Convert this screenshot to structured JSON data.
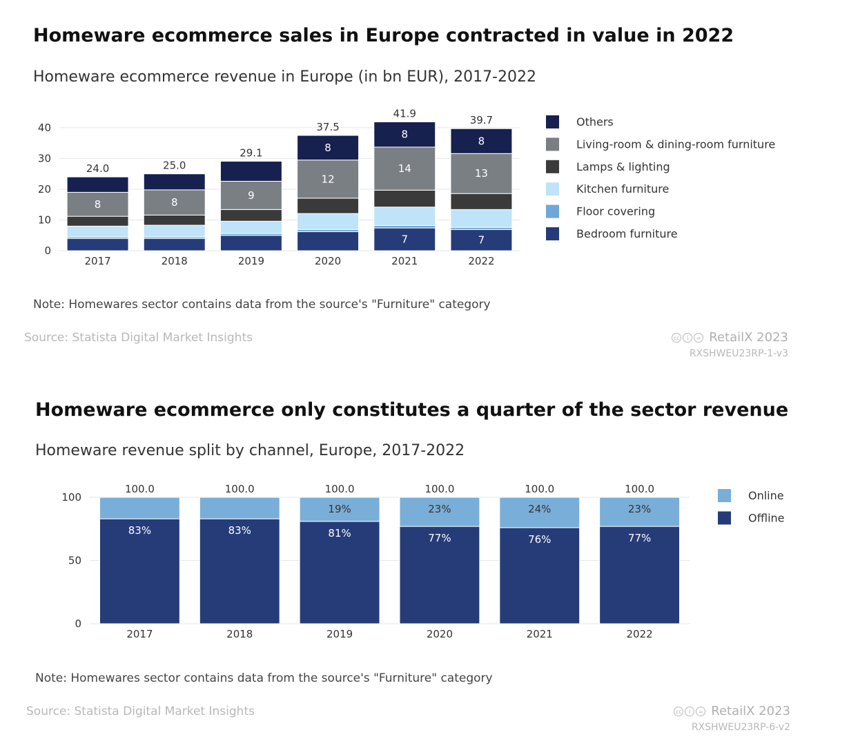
{
  "panel1": {
    "title": "Homeware ecommerce sales in Europe contracted in value in 2022",
    "subtitle": "Homeware ecommerce revenue in Europe (in bn EUR), 2017-2022",
    "note": "Note: Homewares sector contains data from the source's \"Furniture\" category",
    "source": "Source: Statista Digital Market Insights",
    "brand": "RetailX 2023",
    "code": "RXSHWEU23RP-1-v3"
  },
  "panel2": {
    "title": "Homeware ecommerce only constitutes a quarter of the sector revenue",
    "subtitle": "Homeware revenue split by channel, Europe, 2017-2022",
    "note": "Note: Homewares sector contains data from the source's \"Furniture\" category",
    "source": "Source: Statista Digital Market Insights",
    "brand": "RetailX 2023",
    "code": "RXSHWEU23RP-6-v2"
  },
  "chart_data": [
    {
      "type": "bar",
      "stacked": true,
      "title": "Homeware ecommerce revenue in Europe (in bn EUR), 2017-2022",
      "categories": [
        "2017",
        "2018",
        "2019",
        "2020",
        "2021",
        "2022"
      ],
      "ylim": [
        0,
        42
      ],
      "yticks": [
        0,
        10,
        20,
        30,
        40
      ],
      "totals": [
        "24.0",
        "25.0",
        "29.1",
        "37.5",
        "41.9",
        "39.7"
      ],
      "series": [
        {
          "name": "Bedroom furniture",
          "color": "#253c78",
          "values": [
            4.0,
            4.0,
            5.0,
            6.2,
            7.4,
            6.9
          ],
          "labels": [
            "",
            "",
            "",
            "",
            "7",
            "7"
          ]
        },
        {
          "name": "Floor covering",
          "color": "#6fa8d6",
          "values": [
            0.5,
            0.5,
            0.6,
            0.7,
            0.8,
            0.7
          ],
          "labels": [
            "",
            "",
            "",
            "",
            "",
            ""
          ]
        },
        {
          "name": "Kitchen furniture",
          "color": "#bfe3f8",
          "values": [
            3.5,
            3.8,
            4.0,
            5.2,
            6.0,
            5.8
          ],
          "labels": [
            "",
            "",
            "",
            "",
            "",
            ""
          ]
        },
        {
          "name": "Lamps & lighting",
          "color": "#3a3a3a",
          "values": [
            3.2,
            3.3,
            3.8,
            5.0,
            5.5,
            5.2
          ],
          "labels": [
            "",
            "",
            "",
            "",
            "",
            ""
          ]
        },
        {
          "name": "Living-room & dining-room furniture",
          "color": "#7a7f84",
          "values": [
            7.8,
            8.2,
            9.2,
            12.4,
            14.0,
            13.0
          ],
          "labels": [
            "8",
            "8",
            "9",
            "12",
            "14",
            "13"
          ]
        },
        {
          "name": "Others",
          "color": "#16214f",
          "values": [
            5.0,
            5.2,
            6.5,
            8.0,
            8.2,
            8.1
          ],
          "labels": [
            "",
            "",
            "",
            "8",
            "8",
            "8"
          ]
        }
      ],
      "legend_order": [
        "Others",
        "Living-room & dining-room furniture",
        "Lamps & lighting",
        "Kitchen furniture",
        "Floor covering",
        "Bedroom furniture"
      ],
      "legend": "right"
    },
    {
      "type": "bar",
      "stacked": true,
      "title": "Homeware revenue split by channel, Europe, 2017-2022",
      "categories": [
        "2017",
        "2018",
        "2019",
        "2020",
        "2021",
        "2022"
      ],
      "ylim": [
        0,
        100
      ],
      "yticks": [
        0,
        50,
        100
      ],
      "totals": [
        "100.0",
        "100.0",
        "100.0",
        "100.0",
        "100.0",
        "100.0"
      ],
      "series": [
        {
          "name": "Offline",
          "color": "#253c78",
          "values": [
            83,
            83,
            81,
            77,
            76,
            77
          ],
          "labels": [
            "83%",
            "83%",
            "81%",
            "77%",
            "76%",
            "77%"
          ]
        },
        {
          "name": "Online",
          "color": "#79aed8",
          "values": [
            17,
            17,
            19,
            23,
            24,
            23
          ],
          "labels": [
            "",
            "",
            "19%",
            "23%",
            "24%",
            "23%"
          ]
        }
      ],
      "legend_order": [
        "Online",
        "Offline"
      ],
      "legend": "right"
    }
  ]
}
